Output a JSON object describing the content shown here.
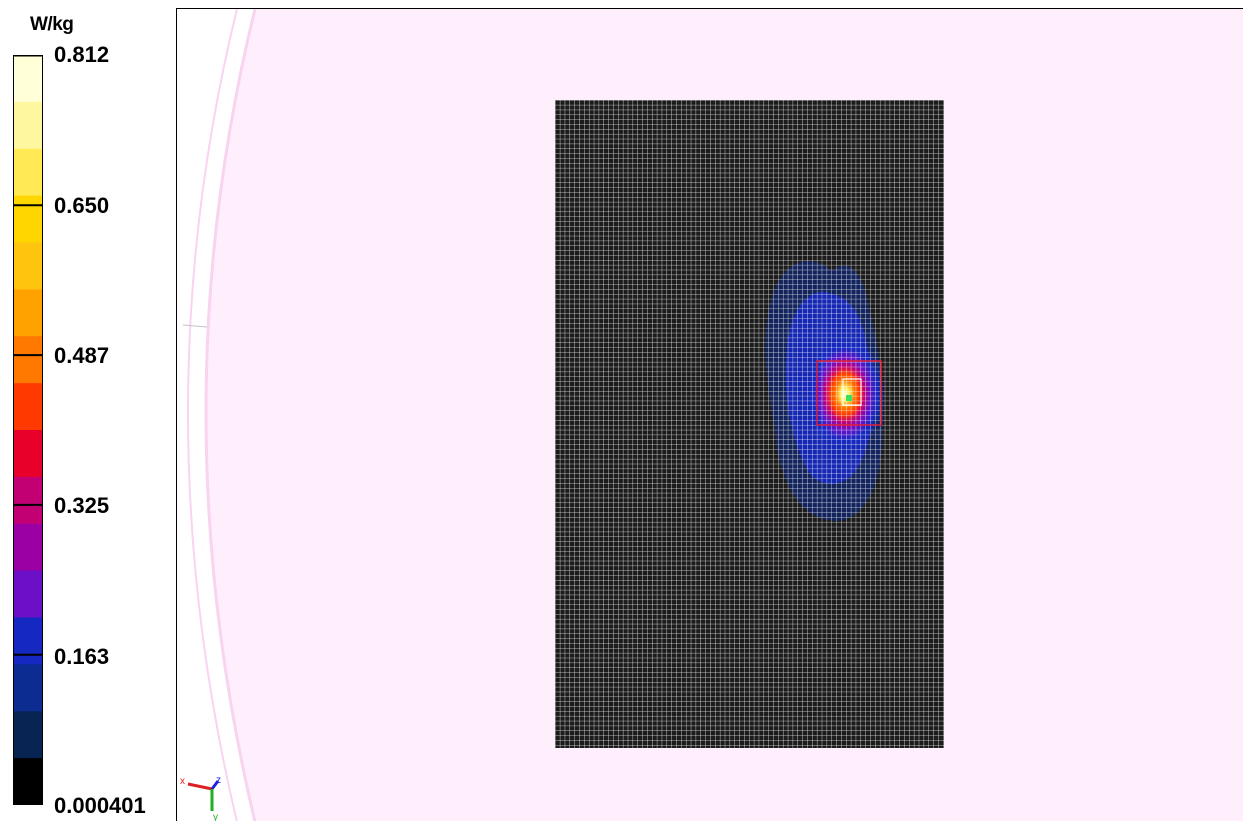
{
  "legend": {
    "unit": "W/kg",
    "tick_labels": [
      "0.812",
      "0.650",
      "0.487",
      "0.325",
      "0.163",
      "0.000401"
    ],
    "bands": [
      "#ffffd8",
      "#fff7a0",
      "#ffea55",
      "#ffd600",
      "#ffc40e",
      "#ffa200",
      "#ff7800",
      "#ff3a00",
      "#e8002a",
      "#c20074",
      "#9b00a4",
      "#6b10c6",
      "#1628c2",
      "#0c2c92",
      "#082452",
      "#000000"
    ]
  },
  "measurement": {
    "scan_area_color": "#1c1c1c",
    "grid_line_color": "#ffffff",
    "zoom_box_color": "#e0203a",
    "peak_box_color": "#ffffff",
    "peak_point_color": "#38e068"
  },
  "phantom": {
    "background_color": "#ffeefb",
    "shell_color": "#f8d4ee"
  },
  "axis_triad": {
    "x_label": "x",
    "y_label": "y",
    "z_label": "z",
    "x_color": "#e02020",
    "y_color": "#20b020",
    "z_color": "#2020e0"
  }
}
